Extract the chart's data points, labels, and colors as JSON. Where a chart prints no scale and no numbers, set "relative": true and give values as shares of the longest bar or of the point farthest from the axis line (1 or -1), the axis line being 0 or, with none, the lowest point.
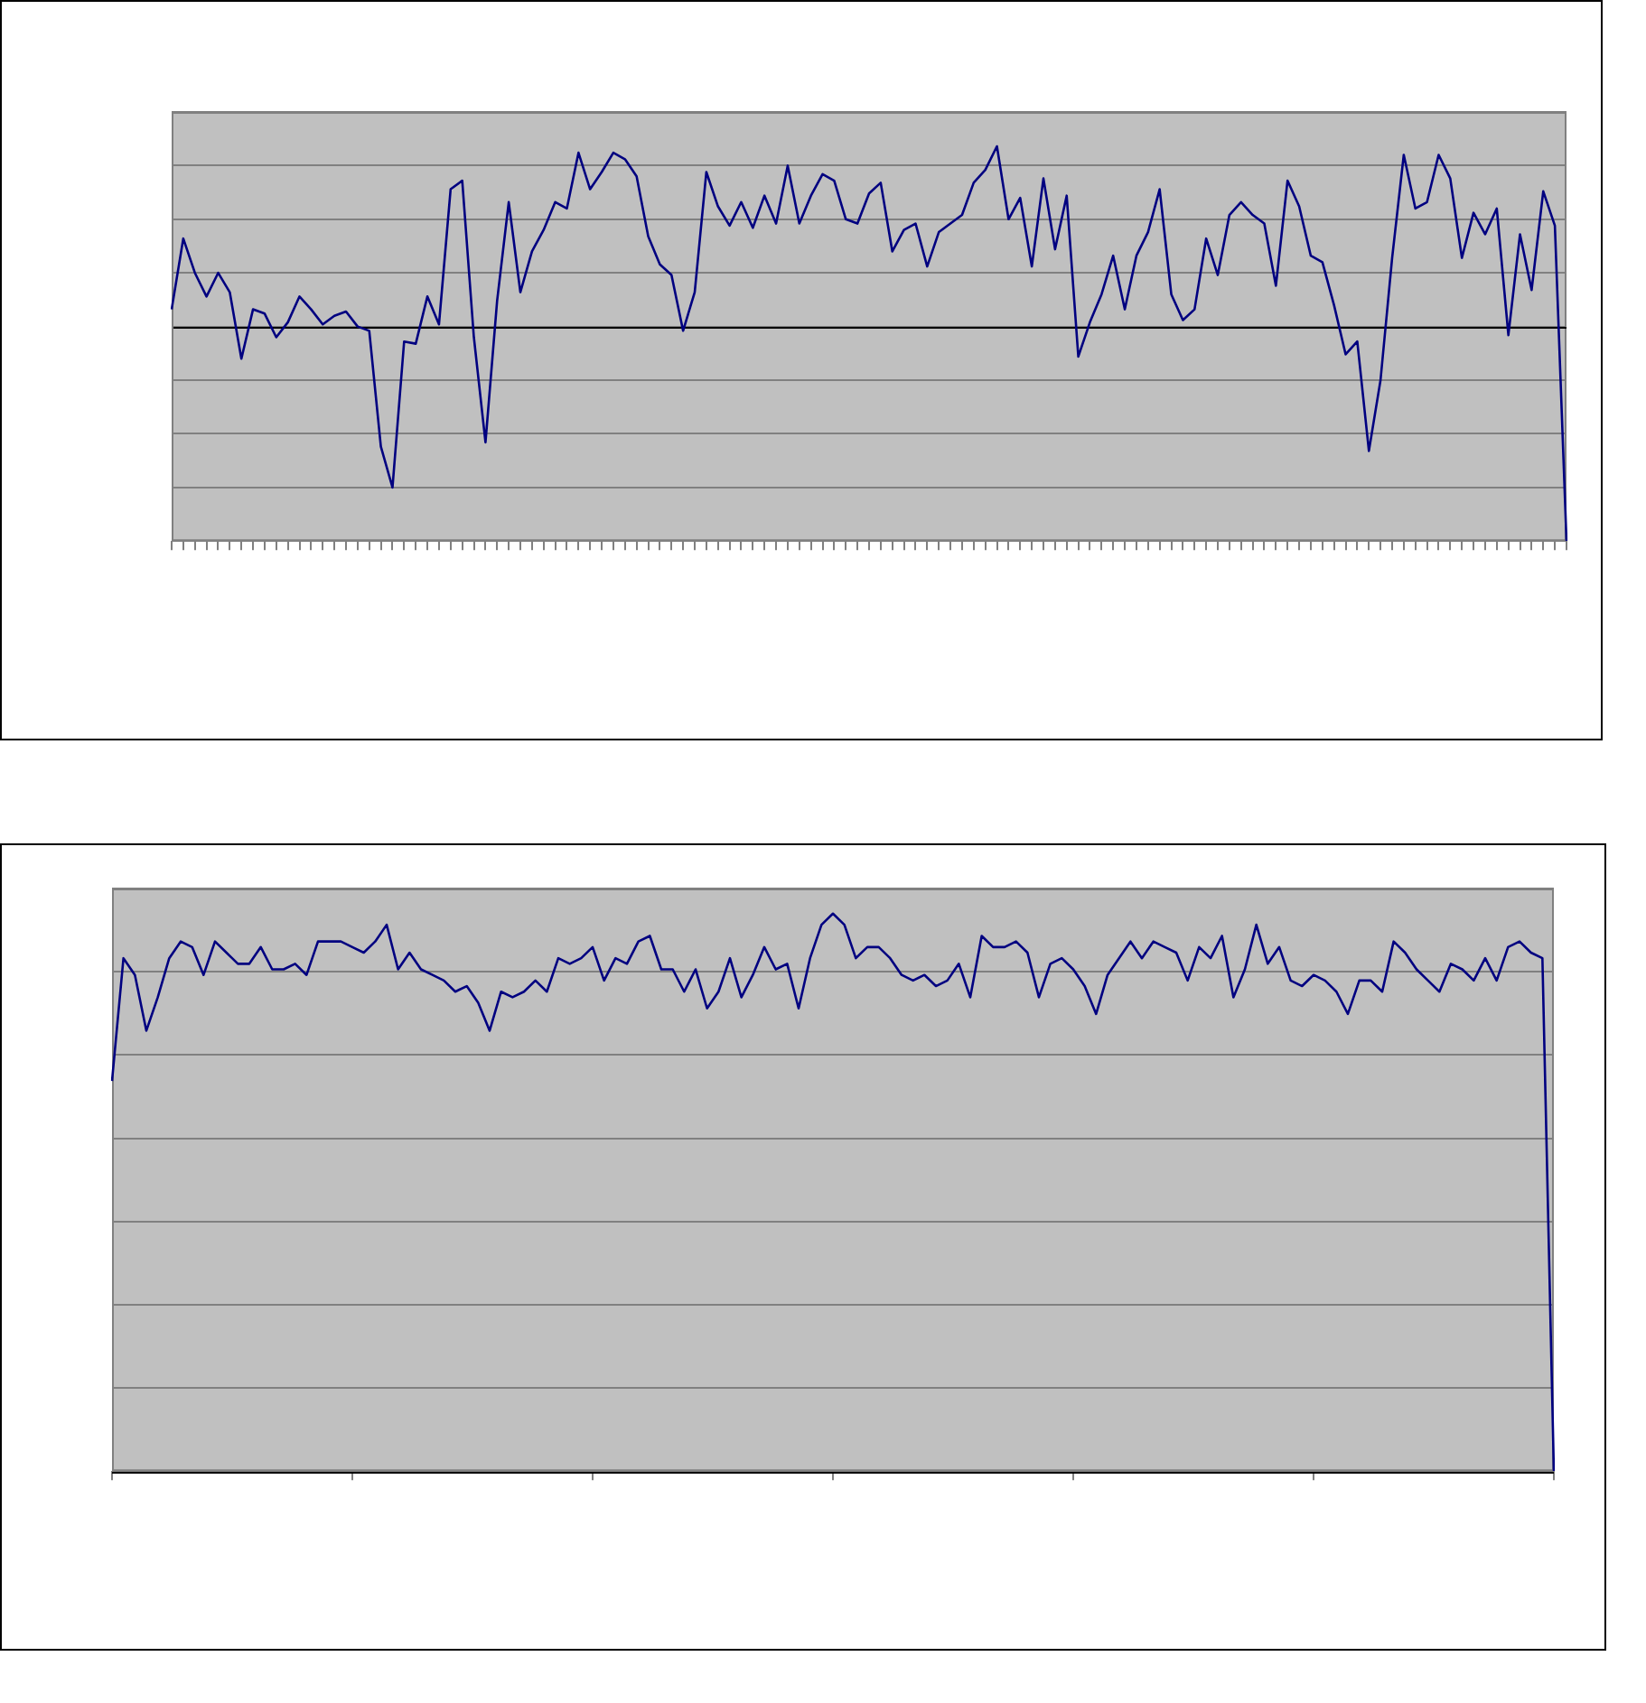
{
  "chart_data": [
    {
      "type": "line",
      "relative": true,
      "grid": "y",
      "marker": "none",
      "line_style": "solid",
      "categories": [
        null,
        null,
        null,
        null,
        null,
        null,
        null,
        null,
        null,
        null,
        null,
        null,
        null,
        null,
        null,
        null,
        null,
        null,
        null,
        null,
        null,
        null,
        null,
        null,
        null,
        null,
        null,
        null,
        null,
        null,
        null,
        null,
        null,
        null,
        null,
        null,
        null,
        null,
        null,
        null,
        null,
        null,
        null,
        null,
        null,
        null,
        null,
        null,
        null,
        null,
        null,
        null,
        null,
        null,
        null,
        null,
        null,
        null,
        null,
        null,
        null,
        null,
        null,
        null,
        null,
        null,
        null,
        null,
        null,
        null,
        null,
        null,
        null,
        null,
        null,
        null,
        null,
        null,
        null,
        null,
        null,
        null,
        null,
        null,
        null,
        null,
        null,
        null,
        null,
        null,
        null,
        null,
        null,
        null,
        null,
        null,
        null,
        null,
        null,
        null,
        null,
        null,
        null,
        null,
        null,
        null,
        null,
        null,
        null,
        null,
        null,
        null,
        null,
        null,
        null,
        null,
        null,
        null,
        null,
        null,
        null
      ],
      "series": [
        {
          "color": "#000080",
          "values": [
            0.08,
            0.41,
            0.25,
            0.14,
            0.25,
            0.16,
            -0.15,
            0.08,
            0.06,
            -0.05,
            0.02,
            0.14,
            0.08,
            0.01,
            0.05,
            0.07,
            0,
            -0.02,
            -0.56,
            -0.75,
            -0.07,
            -0.08,
            0.14,
            0.01,
            0.64,
            0.68,
            -0.05,
            -0.54,
            0.12,
            0.58,
            0.16,
            0.35,
            0.45,
            0.58,
            0.55,
            0.81,
            0.64,
            0.72,
            0.81,
            0.78,
            0.7,
            0.42,
            0.29,
            0.24,
            -0.02,
            0.16,
            0.72,
            0.56,
            0.47,
            0.58,
            0.46,
            0.61,
            0.48,
            0.75,
            0.48,
            0.61,
            0.71,
            0.68,
            0.5,
            0.48,
            0.62,
            0.67,
            0.35,
            0.45,
            0.48,
            0.28,
            0.44,
            0.48,
            0.52,
            0.67,
            0.73,
            0.84,
            0.5,
            0.6,
            0.28,
            0.69,
            0.36,
            0.61,
            -0.14,
            0.02,
            0.15,
            0.33,
            0.08,
            0.33,
            0.44,
            0.64,
            0.15,
            0.03,
            0.08,
            0.41,
            0.24,
            0.52,
            0.58,
            0.52,
            0.48,
            0.19,
            0.68,
            0.56,
            0.33,
            0.3,
            0.1,
            -0.13,
            -0.07,
            -0.58,
            -0.25,
            0.32,
            0.8,
            0.55,
            0.58,
            0.8,
            0.69,
            0.32,
            0.53,
            0.43,
            0.55,
            -0.04,
            0.43,
            0.17,
            0.63,
            0.47,
            -1
          ]
        }
      ]
    },
    {
      "type": "line",
      "relative": true,
      "grid": "y",
      "marker": "none",
      "line_style": "solid",
      "categories": [
        null,
        null,
        null,
        null,
        null,
        null,
        null,
        null,
        null,
        null,
        null,
        null,
        null,
        null,
        null,
        null,
        null,
        null,
        null,
        null,
        null,
        null,
        null,
        null,
        null,
        null,
        null,
        null,
        null,
        null,
        null,
        null,
        null,
        null,
        null,
        null,
        null,
        null,
        null,
        null,
        null,
        null,
        null,
        null,
        null,
        null,
        null,
        null,
        null,
        null,
        null,
        null,
        null,
        null,
        null,
        null,
        null,
        null,
        null,
        null,
        null,
        null,
        null,
        null,
        null,
        null,
        null,
        null,
        null,
        null,
        null,
        null,
        null,
        null,
        null,
        null,
        null,
        null,
        null,
        null,
        null,
        null,
        null,
        null,
        null,
        null,
        null,
        null,
        null,
        null,
        null,
        null,
        null,
        null,
        null,
        null,
        null,
        null,
        null,
        null,
        null,
        null,
        null,
        null,
        null,
        null,
        null,
        null,
        null,
        null,
        null,
        null,
        null,
        null,
        null,
        null,
        null,
        null,
        null,
        null,
        null,
        null,
        null,
        null,
        null,
        null,
        null
      ],
      "series": [
        {
          "color": "#000080",
          "values": [
            0.7,
            0.92,
            0.89,
            0.79,
            0.85,
            0.92,
            0.95,
            0.94,
            0.89,
            0.95,
            0.93,
            0.91,
            0.91,
            0.94,
            0.9,
            0.9,
            0.91,
            0.89,
            0.95,
            0.95,
            0.95,
            0.94,
            0.93,
            0.95,
            0.98,
            0.9,
            0.93,
            0.9,
            0.89,
            0.88,
            0.86,
            0.87,
            0.84,
            0.79,
            0.86,
            0.85,
            0.86,
            0.88,
            0.86,
            0.92,
            0.91,
            0.92,
            0.94,
            0.88,
            0.92,
            0.91,
            0.95,
            0.96,
            0.9,
            0.9,
            0.86,
            0.9,
            0.83,
            0.86,
            0.92,
            0.85,
            0.89,
            0.94,
            0.9,
            0.91,
            0.83,
            0.92,
            0.98,
            1.0,
            0.98,
            0.92,
            0.94,
            0.94,
            0.92,
            0.89,
            0.88,
            0.89,
            0.87,
            0.88,
            0.91,
            0.85,
            0.96,
            0.94,
            0.94,
            0.95,
            0.93,
            0.85,
            0.91,
            0.92,
            0.9,
            0.87,
            0.82,
            0.89,
            0.92,
            0.95,
            0.92,
            0.95,
            0.94,
            0.93,
            0.88,
            0.94,
            0.92,
            0.96,
            0.85,
            0.9,
            0.98,
            0.91,
            0.94,
            0.88,
            0.87,
            0.89,
            0.88,
            0.86,
            0.82,
            0.88,
            0.88,
            0.86,
            0.95,
            0.93,
            0.9,
            0.88,
            0.86,
            0.91,
            0.9,
            0.88,
            0.92,
            0.88,
            0.94,
            0.95,
            0.93,
            0.92,
            0
          ]
        }
      ]
    }
  ]
}
